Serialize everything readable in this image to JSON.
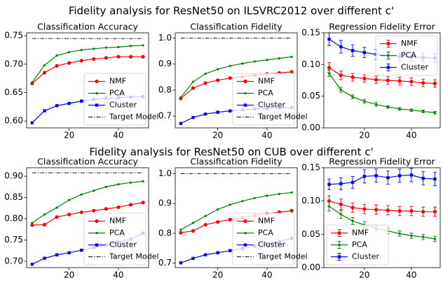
{
  "suptitles": [
    "Fidelity analysis for ResNet50 on ILSVRC2012 over different c'",
    "Fidelity analysis for ResNet50 on CUB over different c'"
  ],
  "chart_data": [
    {
      "type": "line",
      "title": "Classification Accuracy",
      "x": [
        5,
        10,
        15,
        20,
        25,
        30,
        35,
        40,
        45,
        50
      ],
      "xlim": [
        2.75,
        52.25
      ],
      "xticks": [
        20,
        40
      ],
      "ylim": [
        0.588,
        0.755
      ],
      "yticks": [
        {
          "value": 0.6,
          "label": "0.60"
        },
        {
          "value": 0.65,
          "label": "0.65"
        },
        {
          "value": 0.7,
          "label": "0.70"
        },
        {
          "value": 0.75,
          "label": "0.75"
        }
      ],
      "legend": "lower right",
      "series": [
        {
          "name": "NMF",
          "color": "#ff0000",
          "marker": "o",
          "values": [
            0.666,
            0.685,
            0.697,
            0.702,
            0.706,
            0.709,
            0.711,
            0.713,
            0.713,
            0.713
          ]
        },
        {
          "name": "PCA",
          "color": "#008000",
          "marker": ".",
          "values": [
            0.668,
            0.698,
            0.715,
            0.721,
            0.725,
            0.727,
            0.729,
            0.73,
            0.732,
            0.733
          ]
        },
        {
          "name": "Cluster",
          "color": "#0000ff",
          "marker": "s",
          "values": [
            0.597,
            0.618,
            0.627,
            0.631,
            0.635,
            0.638,
            0.64,
            0.641,
            0.642,
            0.643
          ]
        },
        {
          "name": "Target Model",
          "color": "#000000",
          "linestyle": "dashdot",
          "values": [
            0.745,
            0.745,
            0.745,
            0.745,
            0.745,
            0.745,
            0.745,
            0.745,
            0.745,
            0.745
          ]
        }
      ]
    },
    {
      "type": "line",
      "title": "Classification Fidelity",
      "x": [
        5,
        10,
        15,
        20,
        25,
        30,
        35,
        40,
        45,
        50
      ],
      "xlim": [
        2.75,
        52.25
      ],
      "xticks": [
        20,
        40
      ],
      "ylim": [
        0.655,
        1.02
      ],
      "yticks": [
        0.7,
        0.8,
        0.9,
        {
          "value": 1,
          "label": "1.0"
        }
      ],
      "legend": "lower right",
      "series": [
        {
          "name": "NMF",
          "color": "#ff0000",
          "marker": "o",
          "values": [
            0.768,
            0.808,
            0.827,
            0.838,
            0.846,
            0.852,
            0.857,
            0.862,
            0.866,
            0.87
          ]
        },
        {
          "name": "PCA",
          "color": "#008000",
          "marker": ".",
          "values": [
            0.772,
            0.832,
            0.863,
            0.88,
            0.893,
            0.902,
            0.91,
            0.916,
            0.922,
            0.928
          ]
        },
        {
          "name": "Cluster",
          "color": "#0000ff",
          "marker": "s",
          "values": [
            0.672,
            0.695,
            0.708,
            0.715,
            0.72,
            0.724,
            0.727,
            0.729,
            0.731,
            0.733
          ]
        },
        {
          "name": "Target Model",
          "color": "#000000",
          "linestyle": "dashdot",
          "values": [
            1,
            1,
            1,
            1,
            1,
            1,
            1,
            1,
            1,
            1
          ]
        }
      ]
    },
    {
      "type": "errorbar",
      "title": "Regression Fidelity Error",
      "x": [
        5,
        10,
        15,
        20,
        25,
        30,
        35,
        40,
        45,
        50
      ],
      "xlim": [
        2.75,
        52.25
      ],
      "xticks": [
        20,
        40
      ],
      "ylim": [
        0,
        0.15
      ],
      "yticks": [
        {
          "value": 0,
          "label": "0.00"
        },
        {
          "value": 0.05,
          "label": "0.05"
        },
        {
          "value": 0.1,
          "label": "0.10"
        },
        {
          "value": 0.15,
          "label": "0.15"
        }
      ],
      "legend": "upper right",
      "series": [
        {
          "name": "NMF",
          "color": "#ff0000",
          "marker": "o",
          "values": [
            0.095,
            0.083,
            0.08,
            0.078,
            0.076,
            0.075,
            0.074,
            0.073,
            0.071,
            0.07
          ],
          "errors": [
            0.008,
            0.007,
            0.006,
            0.006,
            0.006,
            0.006,
            0.006,
            0.006,
            0.006,
            0.006
          ]
        },
        {
          "name": "PCA",
          "color": "#008000",
          "marker": ".",
          "values": [
            0.086,
            0.06,
            0.049,
            0.042,
            0.037,
            0.033,
            0.03,
            0.028,
            0.026,
            0.024
          ],
          "errors": [
            0.005,
            0.004,
            0.003,
            0.003,
            0.003,
            0.002,
            0.002,
            0.002,
            0.002,
            0.002
          ]
        },
        {
          "name": "Cluster",
          "color": "#0000ff",
          "marker": "s",
          "values": [
            0.14,
            0.128,
            0.122,
            0.119,
            0.116,
            0.114,
            0.113,
            0.112,
            0.111,
            0.11
          ],
          "errors": [
            0.01,
            0.01,
            0.009,
            0.008,
            0.008,
            0.007,
            0.007,
            0.007,
            0.007,
            0.007
          ]
        }
      ]
    },
    {
      "type": "line",
      "title": "Classification Accuracy",
      "x": [
        5,
        10,
        15,
        20,
        25,
        30,
        35,
        40,
        45,
        50
      ],
      "xlim": [
        2.75,
        52.25
      ],
      "xticks": [
        20,
        40
      ],
      "ylim": [
        0.685,
        0.92
      ],
      "yticks": [
        {
          "value": 0.7,
          "label": "0.70"
        },
        {
          "value": 0.75,
          "label": "0.75"
        },
        {
          "value": 0.8,
          "label": "0.80"
        },
        {
          "value": 0.85,
          "label": "0.85"
        },
        {
          "value": 0.9,
          "label": "0.90"
        }
      ],
      "legend": "lower right",
      "series": [
        {
          "name": "NMF",
          "color": "#ff0000",
          "marker": "o",
          "values": [
            0.785,
            0.786,
            0.804,
            0.81,
            0.815,
            0.819,
            0.823,
            0.827,
            0.833,
            0.838
          ]
        },
        {
          "name": "PCA",
          "color": "#008000",
          "marker": ".",
          "values": [
            0.79,
            0.81,
            0.826,
            0.844,
            0.857,
            0.866,
            0.875,
            0.881,
            0.885,
            0.888
          ]
        },
        {
          "name": "Cluster",
          "color": "#0000ff",
          "marker": "s",
          "values": [
            0.693,
            0.707,
            0.715,
            0.72,
            0.726,
            0.732,
            0.738,
            0.745,
            0.752,
            0.766
          ]
        },
        {
          "name": "Target Model",
          "color": "#000000",
          "linestyle": "dashdot",
          "values": [
            0.908,
            0.908,
            0.908,
            0.908,
            0.908,
            0.908,
            0.908,
            0.908,
            0.908,
            0.908
          ]
        }
      ]
    },
    {
      "type": "line",
      "title": "Classification Fidelity",
      "x": [
        5,
        10,
        15,
        20,
        25,
        30,
        35,
        40,
        45,
        50
      ],
      "xlim": [
        2.75,
        52.25
      ],
      "xticks": [
        20,
        40
      ],
      "ylim": [
        0.685,
        1.02
      ],
      "yticks": [
        0.7,
        0.8,
        0.9,
        {
          "value": 1,
          "label": "1.0"
        }
      ],
      "legend": "lower right",
      "series": [
        {
          "name": "NMF",
          "color": "#ff0000",
          "marker": "o",
          "values": [
            0.802,
            0.808,
            0.829,
            0.838,
            0.846,
            0.853,
            0.86,
            0.865,
            0.871,
            0.876
          ]
        },
        {
          "name": "PCA",
          "color": "#008000",
          "marker": ".",
          "values": [
            0.812,
            0.835,
            0.858,
            0.88,
            0.896,
            0.908,
            0.918,
            0.926,
            0.932,
            0.937
          ]
        },
        {
          "name": "Cluster",
          "color": "#0000ff",
          "marker": "s",
          "values": [
            0.701,
            0.716,
            0.728,
            0.735,
            0.742,
            0.749,
            0.757,
            0.765,
            0.772,
            0.783
          ]
        },
        {
          "name": "Target Model",
          "color": "#000000",
          "linestyle": "dashdot",
          "values": [
            1,
            1,
            1,
            1,
            1,
            1,
            1,
            1,
            1,
            1
          ]
        }
      ]
    },
    {
      "type": "errorbar",
      "title": "Regression Fidelity Error",
      "x": [
        5,
        10,
        15,
        20,
        25,
        30,
        35,
        40,
        45,
        50
      ],
      "xlim": [
        2.75,
        52.25
      ],
      "xticks": [
        20,
        40
      ],
      "ylim": [
        0,
        0.15
      ],
      "yticks": [
        {
          "value": 0,
          "label": "0.00"
        },
        {
          "value": 0.05,
          "label": "0.05"
        },
        {
          "value": 0.1,
          "label": "0.10"
        },
        {
          "value": 0.15,
          "label": "0.15"
        }
      ],
      "legend": "lower left",
      "series": [
        {
          "name": "NMF",
          "color": "#ff0000",
          "marker": "o",
          "values": [
            0.1,
            0.095,
            0.09,
            0.088,
            0.087,
            0.086,
            0.085,
            0.085,
            0.084,
            0.084
          ],
          "errors": [
            0.008,
            0.008,
            0.007,
            0.007,
            0.007,
            0.007,
            0.007,
            0.007,
            0.007,
            0.007
          ]
        },
        {
          "name": "PCA",
          "color": "#008000",
          "marker": ".",
          "values": [
            0.092,
            0.08,
            0.07,
            0.064,
            0.059,
            0.055,
            0.051,
            0.048,
            0.046,
            0.043
          ],
          "errors": [
            0.007,
            0.006,
            0.005,
            0.005,
            0.004,
            0.004,
            0.004,
            0.004,
            0.004,
            0.004
          ]
        },
        {
          "name": "Cluster",
          "color": "#0000ff",
          "marker": "s",
          "values": [
            0.125,
            0.126,
            0.128,
            0.137,
            0.138,
            0.135,
            0.138,
            0.139,
            0.134,
            0.133
          ],
          "errors": [
            0.008,
            0.009,
            0.009,
            0.01,
            0.01,
            0.01,
            0.01,
            0.01,
            0.01,
            0.01
          ]
        }
      ]
    }
  ]
}
